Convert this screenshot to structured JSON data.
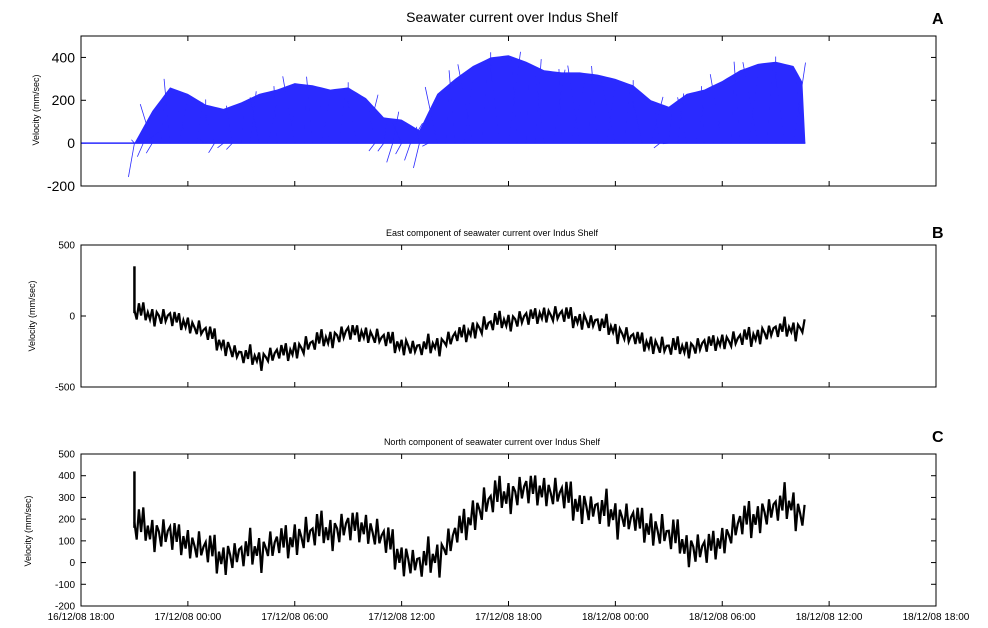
{
  "chart_data": [
    {
      "panel_letter": "A",
      "title": "Seawater current over Indus Shelf",
      "type": "line",
      "ylabel": "Velocity (mm/sec)",
      "ylim": [
        -200,
        500
      ],
      "yticks": [
        -200,
        0,
        200,
        400
      ],
      "xlim": [
        "16/12/08 18:00",
        "18/12/08 18:00"
      ],
      "series_color": "#2a2aff",
      "series": [
        {
          "x": [
            "16/12/08 18:00",
            "16/12/08 21:00",
            "16/12/08 22:00",
            "16/12/08 23:00",
            "17/12/08 00:00",
            "17/12/08 01:00",
            "17/12/08 02:00",
            "17/12/08 03:00",
            "17/12/08 04:00",
            "17/12/08 05:00",
            "17/12/08 06:00",
            "17/12/08 07:00",
            "17/12/08 08:00",
            "17/12/08 09:00",
            "17/12/08 10:00",
            "17/12/08 11:00",
            "17/12/08 12:00",
            "17/12/08 13:00",
            "17/12/08 14:00",
            "17/12/08 15:00",
            "17/12/08 16:00",
            "17/12/08 17:00",
            "17/12/08 18:00",
            "17/12/08 19:00",
            "17/12/08 20:00",
            "17/12/08 21:00",
            "17/12/08 22:00",
            "17/12/08 23:00",
            "18/12/08 00:00",
            "18/12/08 01:00",
            "18/12/08 02:00",
            "18/12/08 03:00",
            "18/12/08 04:00",
            "18/12/08 05:00",
            "18/12/08 06:00",
            "18/12/08 07:00",
            "18/12/08 08:00",
            "18/12/08 09:00",
            "18/12/08 10:00",
            "18/12/08 10:40"
          ],
          "y": [
            0,
            0,
            150,
            260,
            230,
            180,
            160,
            190,
            230,
            250,
            280,
            270,
            250,
            260,
            210,
            120,
            110,
            60,
            230,
            300,
            360,
            400,
            410,
            380,
            340,
            330,
            330,
            320,
            300,
            270,
            200,
            170,
            230,
            250,
            290,
            340,
            370,
            380,
            360,
            260
          ]
        }
      ]
    },
    {
      "panel_letter": "B",
      "title": "East component of seawater current over Indus Shelf",
      "type": "line",
      "ylabel": "Velocity (mm/sec)",
      "ylim": [
        -500,
        500
      ],
      "yticks": [
        -500,
        0,
        500
      ],
      "xlim": [
        "16/12/08 18:00",
        "18/12/08 18:00"
      ],
      "series": [
        {
          "x": [
            "16/12/08 21:00",
            "16/12/08 22:00",
            "16/12/08 23:00",
            "17/12/08 00:00",
            "17/12/08 01:00",
            "17/12/08 02:00",
            "17/12/08 03:00",
            "17/12/08 04:00",
            "17/12/08 05:00",
            "17/12/08 06:00",
            "17/12/08 07:00",
            "17/12/08 08:00",
            "17/12/08 09:00",
            "17/12/08 10:00",
            "17/12/08 11:00",
            "17/12/08 12:00",
            "17/12/08 13:00",
            "17/12/08 14:00",
            "17/12/08 15:00",
            "17/12/08 16:00",
            "17/12/08 17:00",
            "17/12/08 18:00",
            "17/12/08 19:00",
            "17/12/08 20:00",
            "17/12/08 21:00",
            "17/12/08 22:00",
            "17/12/08 23:00",
            "18/12/08 00:00",
            "18/12/08 01:00",
            "18/12/08 02:00",
            "18/12/08 03:00",
            "18/12/08 04:00",
            "18/12/08 05:00",
            "18/12/08 06:00",
            "18/12/08 07:00",
            "18/12/08 08:00",
            "18/12/08 09:00",
            "18/12/08 10:00",
            "18/12/08 10:40"
          ],
          "y": [
            20,
            10,
            -10,
            -60,
            -120,
            -200,
            -280,
            -300,
            -270,
            -240,
            -200,
            -150,
            -110,
            -130,
            -170,
            -200,
            -230,
            -200,
            -150,
            -100,
            -60,
            -30,
            -10,
            10,
            0,
            -20,
            -50,
            -100,
            -160,
            -200,
            -230,
            -220,
            -200,
            -180,
            -170,
            -130,
            -100,
            -90,
            -80
          ]
        }
      ]
    },
    {
      "panel_letter": "C",
      "title": "North component of seawater current over Indus Shelf",
      "type": "line",
      "ylabel": "Velocity (mm/sec)",
      "ylim": [
        -200,
        500
      ],
      "yticks": [
        -200,
        -100,
        0,
        100,
        200,
        300,
        400,
        500
      ],
      "xlim": [
        "16/12/08 18:00",
        "18/12/08 18:00"
      ],
      "xticks": [
        "16/12/08 18:00",
        "17/12/08 00:00",
        "17/12/08 06:00",
        "17/12/08 12:00",
        "17/12/08 18:00",
        "18/12/08 00:00",
        "18/12/08 06:00",
        "18/12/08 12:00",
        "18/12/08 18:00"
      ],
      "series": [
        {
          "x": [
            "16/12/08 21:00",
            "16/12/08 22:00",
            "16/12/08 23:00",
            "17/12/08 00:00",
            "17/12/08 01:00",
            "17/12/08 02:00",
            "17/12/08 03:00",
            "17/12/08 04:00",
            "17/12/08 05:00",
            "17/12/08 06:00",
            "17/12/08 07:00",
            "17/12/08 08:00",
            "17/12/08 09:00",
            "17/12/08 10:00",
            "17/12/08 11:00",
            "17/12/08 12:00",
            "17/12/08 13:00",
            "17/12/08 14:00",
            "17/12/08 15:00",
            "17/12/08 16:00",
            "17/12/08 17:00",
            "17/12/08 18:00",
            "17/12/08 19:00",
            "17/12/08 20:00",
            "17/12/08 21:00",
            "17/12/08 22:00",
            "17/12/08 23:00",
            "18/12/08 00:00",
            "18/12/08 01:00",
            "18/12/08 02:00",
            "18/12/08 03:00",
            "18/12/08 04:00",
            "18/12/08 05:00",
            "18/12/08 06:00",
            "18/12/08 07:00",
            "18/12/08 08:00",
            "18/12/08 09:00",
            "18/12/08 10:00",
            "18/12/08 10:40"
          ],
          "y": [
            160,
            150,
            130,
            90,
            50,
            30,
            40,
            60,
            80,
            110,
            130,
            150,
            170,
            160,
            100,
            30,
            -10,
            30,
            120,
            220,
            280,
            320,
            340,
            330,
            300,
            270,
            240,
            220,
            190,
            160,
            120,
            80,
            60,
            100,
            170,
            220,
            250,
            270,
            190
          ]
        }
      ]
    }
  ],
  "panels": [
    {
      "letter": "A",
      "title": "Seawater current over Indus Shelf"
    },
    {
      "letter": "B",
      "title": "East component of seawater current over Indus Shelf"
    },
    {
      "letter": "C",
      "title": "North component of seawater current over Indus Shelf"
    }
  ]
}
